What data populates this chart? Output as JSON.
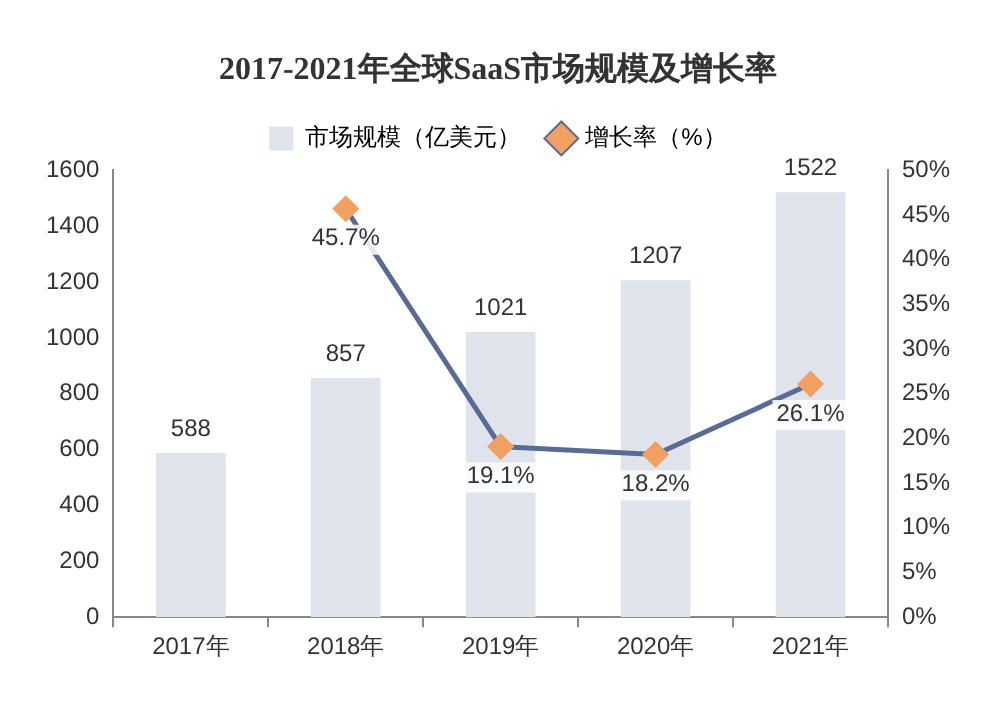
{
  "chart_data": {
    "type": "bar",
    "title": "2017-2021年全球SaaS市场规模及增长率",
    "categories": [
      "2017年",
      "2018年",
      "2019年",
      "2020年",
      "2021年"
    ],
    "series": [
      {
        "name": "市场规模（亿美元）",
        "color": "#dfe3ec",
        "values": [
          588,
          857,
          1021,
          1207,
          1522
        ],
        "value_labels": [
          "588",
          "857",
          "1021",
          "1207",
          "1522"
        ]
      },
      {
        "type": "line",
        "axis": "y2",
        "name": "增长率（%）",
        "color": "#5a6a96",
        "colors": [
          null,
          "#f0a060",
          "#f0a060",
          "#f0a060",
          "#f0a060"
        ],
        "marker": "diamond",
        "values": [
          null,
          45.7,
          19.1,
          18.2,
          26.1
        ],
        "value_labels": [
          null,
          "45.7%",
          "19.1%",
          "18.2%",
          "26.1%"
        ]
      }
    ],
    "ylim": [
      0,
      1600
    ],
    "yticks": [
      0,
      200,
      400,
      600,
      800,
      1000,
      1200,
      1400,
      1600
    ],
    "y2lim": [
      0,
      50
    ],
    "y2ticks": [
      {
        "value": 0,
        "label": "0%"
      },
      {
        "value": 5,
        "label": "5%"
      },
      {
        "value": 10,
        "label": "10%"
      },
      {
        "value": 15,
        "label": "15%"
      },
      {
        "value": 20,
        "label": "20%"
      },
      {
        "value": 25,
        "label": "25%"
      },
      {
        "value": 30,
        "label": "30%"
      },
      {
        "value": 35,
        "label": "35%"
      },
      {
        "value": 40,
        "label": "40%"
      },
      {
        "value": 45,
        "label": "45%"
      },
      {
        "value": 50,
        "label": "50%"
      }
    ],
    "legend": "top",
    "grid": false
  }
}
